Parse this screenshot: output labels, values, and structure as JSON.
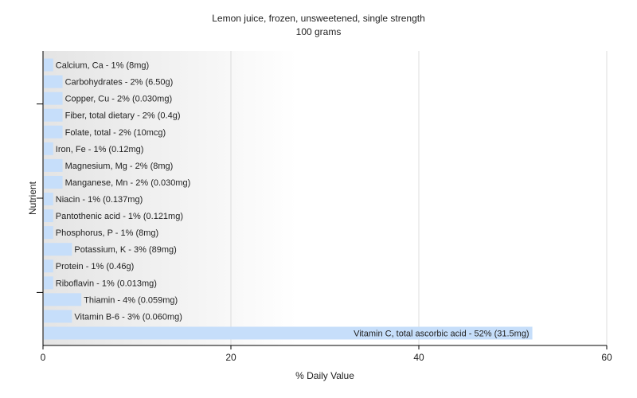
{
  "chart_data": {
    "type": "bar",
    "orientation": "horizontal",
    "title": "Lemon juice, frozen, unsweetened, single strength",
    "subtitle": "100 grams",
    "xlabel": "% Daily Value",
    "ylabel": "Nutrient",
    "xlim": [
      0,
      60
    ],
    "xticks": [
      0,
      20,
      40,
      60
    ],
    "grid": true,
    "legend": "none",
    "bar_color": "#c6defa",
    "categories": [
      "Calcium, Ca",
      "Carbohydrates",
      "Copper, Cu",
      "Fiber, total dietary",
      "Folate, total",
      "Iron, Fe",
      "Magnesium, Mg",
      "Manganese, Mn",
      "Niacin",
      "Pantothenic acid",
      "Phosphorus, P",
      "Potassium, K",
      "Protein",
      "Riboflavin",
      "Thiamin",
      "Vitamin B-6",
      "Vitamin C, total ascorbic acid"
    ],
    "values": [
      1,
      2,
      2,
      2,
      2,
      1,
      2,
      2,
      1,
      1,
      1,
      3,
      1,
      1,
      4,
      3,
      52
    ],
    "labels": [
      "Calcium, Ca - 1% (8mg)",
      "Carbohydrates - 2% (6.50g)",
      "Copper, Cu - 2% (0.030mg)",
      "Fiber, total dietary - 2% (0.4g)",
      "Folate, total - 2% (10mcg)",
      "Iron, Fe - 1% (0.12mg)",
      "Magnesium, Mg - 2% (8mg)",
      "Manganese, Mn - 2% (0.030mg)",
      "Niacin - 1% (0.137mg)",
      "Pantothenic acid - 1% (0.121mg)",
      "Phosphorus, P - 1% (8mg)",
      "Potassium, K - 3% (89mg)",
      "Protein - 1% (0.46g)",
      "Riboflavin - 1% (0.013mg)",
      "Thiamin - 4% (0.059mg)",
      "Vitamin B-6 - 3% (0.060mg)",
      "Vitamin C, total ascorbic acid - 52% (31.5mg)"
    ]
  }
}
